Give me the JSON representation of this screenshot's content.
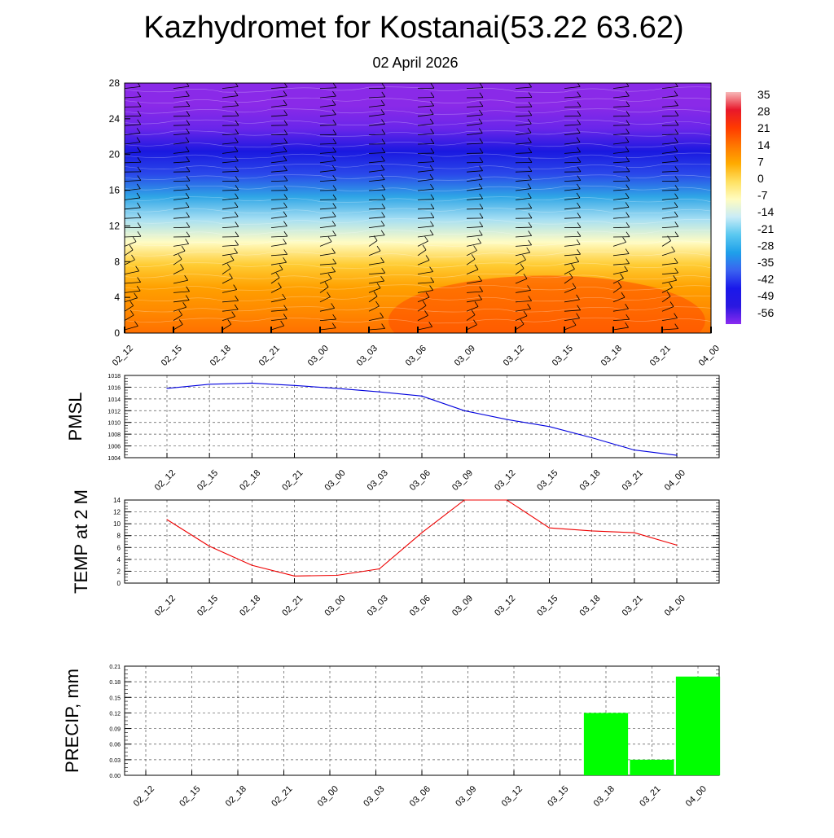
{
  "title": "Kazhydromet for Kostanai(53.22 63.62)",
  "subtitle": "02 April 2026",
  "chart_data": [
    {
      "type": "heatmap",
      "name": "vertical-cross-section",
      "x_ticks": [
        "02_12",
        "02_15",
        "02_18",
        "02_21",
        "03_00",
        "03_03",
        "03_06",
        "03_09",
        "03_12",
        "03_15",
        "03_18",
        "03_21",
        "04_00"
      ],
      "y_ticks": [
        "0",
        "4",
        "8",
        "12",
        "16",
        "20",
        "24",
        "28"
      ],
      "ylim": [
        0,
        28
      ],
      "colorbar": {
        "labels": [
          "35",
          "28",
          "21",
          "14",
          "7",
          "0",
          "-7",
          "-14",
          "-21",
          "-28",
          "-35",
          "-42",
          "-49",
          "-56"
        ],
        "colors": [
          "#f7b8b8",
          "#e8182a",
          "#ff3a00",
          "#ff7700",
          "#ffab00",
          "#ffe060",
          "#fffcc0",
          "#c9ecf7",
          "#5ac8f0",
          "#1ea0ea",
          "#3a62f0",
          "#1a18ea",
          "#2a18e0",
          "#8a2af0"
        ]
      },
      "bands_top_to_bottom": [
        "#8a2ae8",
        "#8a2ae8",
        "#6a26ea",
        "#1a18e0",
        "#2a48ea",
        "#2fa6e6",
        "#a6dff3",
        "#fffcc4",
        "#ffcc33",
        "#ffa000",
        "#ff8a00",
        "#ff7000"
      ]
    },
    {
      "type": "line",
      "name": "pmsl",
      "ylabel": "PMSL",
      "color": "#0000dd",
      "categories": [
        "02_12",
        "02_15",
        "02_18",
        "02_21",
        "03_00",
        "03_03",
        "03_06",
        "03_09",
        "03_12",
        "03_15",
        "03_18",
        "03_21",
        "04_00"
      ],
      "values": [
        1015.8,
        1016.5,
        1016.7,
        1016.3,
        1015.8,
        1015.2,
        1014.5,
        1012.0,
        1010.5,
        1009.3,
        1007.4,
        1005.3,
        1004.4
      ],
      "ylim": [
        1004,
        1018
      ],
      "y_ticks": [
        "1004",
        "1006",
        "1008",
        "1010",
        "1012",
        "1014",
        "1016",
        "1018"
      ]
    },
    {
      "type": "line",
      "name": "temp2m",
      "ylabel": "TEMP at 2 M",
      "color": "#ee0000",
      "categories": [
        "02_12",
        "02_15",
        "02_18",
        "02_21",
        "03_00",
        "03_03",
        "03_06",
        "03_09",
        "03_12",
        "03_15",
        "03_18",
        "03_21",
        "04_00"
      ],
      "values": [
        10.7,
        6.2,
        3.0,
        1.2,
        1.3,
        2.4,
        8.5,
        14.0,
        14.0,
        9.3,
        8.8,
        8.5,
        6.4
      ],
      "ylim": [
        0,
        14
      ],
      "y_ticks": [
        "0",
        "2",
        "4",
        "6",
        "8",
        "10",
        "12",
        "14"
      ]
    },
    {
      "type": "bar",
      "name": "precip",
      "ylabel": "PRECIP, mm",
      "color": "#00ff00",
      "categories": [
        "02_12",
        "02_15",
        "02_18",
        "02_21",
        "03_00",
        "03_03",
        "03_06",
        "03_09",
        "03_12",
        "03_15",
        "03_18",
        "03_21",
        "04_00"
      ],
      "values": [
        0,
        0,
        0,
        0,
        0,
        0,
        0,
        0,
        0,
        0,
        0.12,
        0.03,
        0.19
      ],
      "ylim": [
        0,
        0.21
      ],
      "y_ticks": [
        "0.00",
        "0.03",
        "0.06",
        "0.09",
        "0.12",
        "0.15",
        "0.18",
        "0.21"
      ]
    }
  ]
}
